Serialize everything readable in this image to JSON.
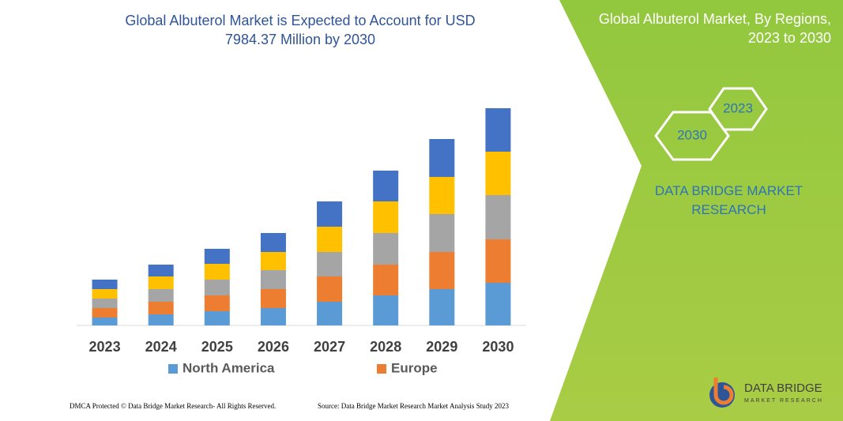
{
  "chart_data": {
    "type": "bar",
    "stacked": true,
    "title": "Global Albuterol Market is Expected to Account for USD 7984.37 Million by 2030",
    "categories": [
      "2023",
      "2024",
      "2025",
      "2026",
      "2027",
      "2028",
      "2029",
      "2030"
    ],
    "series": [
      {
        "name": "North America",
        "color": "#5b9bd5",
        "values": [
          10,
          14,
          18,
          22,
          30,
          38,
          46,
          54
        ]
      },
      {
        "name": "Europe",
        "color": "#ed7d31",
        "values": [
          12,
          16,
          20,
          24,
          32,
          39,
          47,
          55
        ]
      },
      {
        "color": "#a5a5a5",
        "values": [
          12,
          16,
          20,
          24,
          31,
          40,
          48,
          56
        ]
      },
      {
        "color": "#ffc000",
        "values": [
          12,
          16,
          20,
          23,
          32,
          40,
          47,
          55
        ]
      },
      {
        "color": "#4472c4",
        "values": [
          12,
          15,
          19,
          24,
          32,
          39,
          48,
          55
        ]
      }
    ],
    "ylim": [
      0,
      280
    ],
    "legend": "bottom"
  },
  "panel": {
    "title": "Global Albuterol Market, By Regions, 2023 to 2030",
    "hexagons": [
      "2030",
      "2023"
    ],
    "brand": "DATA BRIDGE MARKET RESEARCH"
  },
  "footer": {
    "left": "DMCA Protected © Data Bridge Market Research- All Rights Reserved.",
    "right": "Source: Data Bridge Market Research Market Analysis Study 2023"
  },
  "logo": {
    "name": "DATA BRIDGE",
    "tagline": "MARKET RESEARCH"
  }
}
